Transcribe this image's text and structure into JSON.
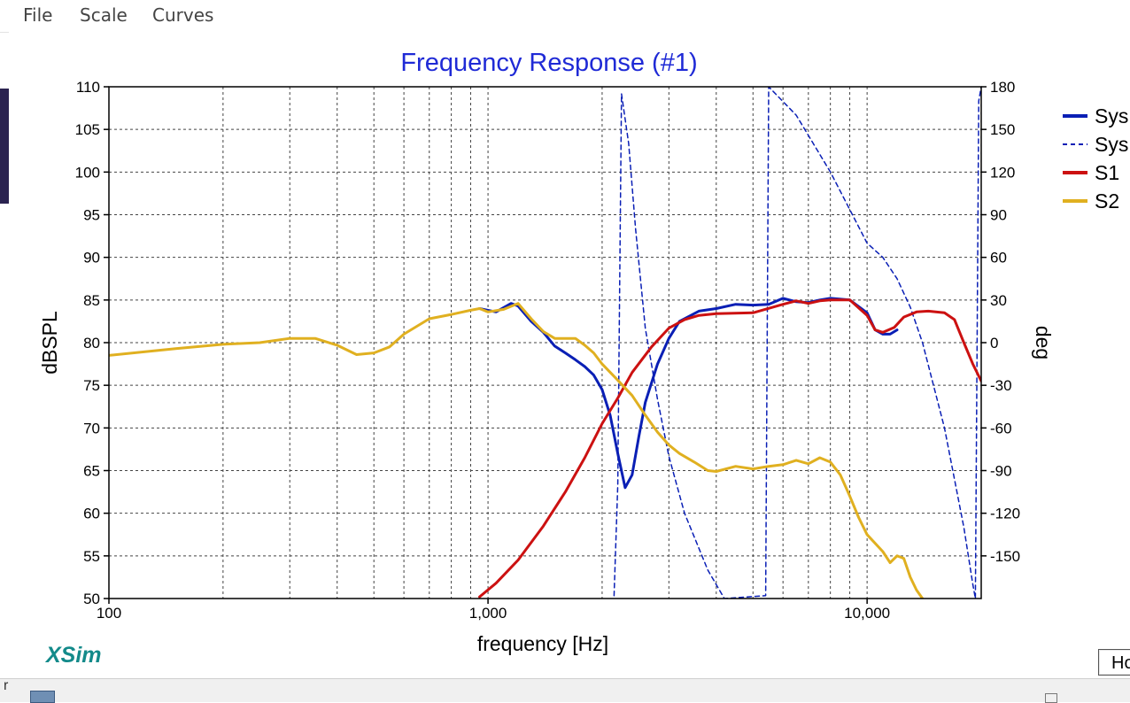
{
  "menu": {
    "file": "File",
    "scale": "Scale",
    "curves": "Curves"
  },
  "button_partial": "Ho",
  "bottom_partial": "r",
  "brand": "XSim",
  "chart_data": {
    "type": "line",
    "title": "Frequency Response (#1)",
    "xlabel": "frequency [Hz]",
    "ylabel": "dBSPL",
    "y2label": "deg",
    "xscale": "log",
    "xlim": [
      100,
      20000
    ],
    "ylim": [
      50,
      110
    ],
    "y2lim": [
      -180,
      180
    ],
    "grid": true,
    "legend_placement": "right",
    "x_tick_labels": [
      "100",
      "1,000",
      "10,000"
    ],
    "x_tick_values": [
      100,
      1000,
      10000
    ],
    "y_ticks": [
      50,
      55,
      60,
      65,
      70,
      75,
      80,
      85,
      90,
      95,
      100,
      105,
      110
    ],
    "y2_ticks": [
      -150,
      -120,
      -90,
      -60,
      -30,
      0,
      30,
      60,
      90,
      120,
      150,
      180
    ],
    "series": [
      {
        "name": "Sys",
        "axis": "left",
        "style": "solid",
        "color": "#0a1fb5",
        "width": 3,
        "points": [
          [
            950,
            84
          ],
          [
            1050,
            83.6
          ],
          [
            1150,
            84.6
          ],
          [
            1200,
            84.3
          ],
          [
            1300,
            82.5
          ],
          [
            1400,
            81.2
          ],
          [
            1500,
            79.6
          ],
          [
            1600,
            78.8
          ],
          [
            1700,
            78
          ],
          [
            1800,
            77.2
          ],
          [
            1900,
            76.2
          ],
          [
            2000,
            74.5
          ],
          [
            2100,
            71.5
          ],
          [
            2200,
            67
          ],
          [
            2300,
            63
          ],
          [
            2400,
            64.5
          ],
          [
            2500,
            69
          ],
          [
            2600,
            73
          ],
          [
            2800,
            77.5
          ],
          [
            3000,
            80.5
          ],
          [
            3200,
            82.5
          ],
          [
            3600,
            83.7
          ],
          [
            4000,
            84
          ],
          [
            4500,
            84.5
          ],
          [
            5000,
            84.4
          ],
          [
            5500,
            84.5
          ],
          [
            6000,
            85.2
          ],
          [
            6500,
            84.8
          ],
          [
            7000,
            84.7
          ],
          [
            7500,
            85
          ],
          [
            8000,
            85.2
          ],
          [
            9000,
            85
          ],
          [
            10000,
            83.5
          ],
          [
            10500,
            81.5
          ],
          [
            11000,
            81
          ],
          [
            11500,
            81
          ],
          [
            12000,
            81.5
          ]
        ]
      },
      {
        "name": "Sys",
        "axis": "right",
        "style": "dashed",
        "color": "#0a1fb5",
        "width": 1.5,
        "points": [
          [
            2150,
            -178
          ],
          [
            2200,
            -100
          ],
          [
            2250,
            175
          ],
          [
            2350,
            140
          ],
          [
            2450,
            80
          ],
          [
            2600,
            10
          ],
          [
            2800,
            -40
          ],
          [
            3000,
            -80
          ],
          [
            3300,
            -120
          ],
          [
            3800,
            -160
          ],
          [
            4200,
            -180
          ],
          [
            5400,
            -178
          ],
          [
            5500,
            180
          ],
          [
            6500,
            160
          ],
          [
            8000,
            120
          ],
          [
            10000,
            70
          ],
          [
            11000,
            60
          ],
          [
            12000,
            45
          ],
          [
            13000,
            25
          ],
          [
            14000,
            0
          ],
          [
            16000,
            -60
          ],
          [
            18000,
            -130
          ],
          [
            19000,
            -170
          ],
          [
            19300,
            -180
          ],
          [
            19700,
            170
          ],
          [
            20000,
            180
          ]
        ]
      },
      {
        "name": "S1",
        "axis": "left",
        "style": "solid",
        "color": "#cc1111",
        "width": 3,
        "points": [
          [
            950,
            50.2
          ],
          [
            1050,
            51.8
          ],
          [
            1200,
            54.5
          ],
          [
            1400,
            58.5
          ],
          [
            1600,
            62.5
          ],
          [
            1800,
            66.5
          ],
          [
            2000,
            70.5
          ],
          [
            2200,
            73.5
          ],
          [
            2400,
            76.5
          ],
          [
            2700,
            79.5
          ],
          [
            3000,
            81.7
          ],
          [
            3300,
            82.7
          ],
          [
            3600,
            83.2
          ],
          [
            4000,
            83.4
          ],
          [
            5000,
            83.5
          ],
          [
            6000,
            84.5
          ],
          [
            6500,
            84.9
          ],
          [
            7000,
            84.6
          ],
          [
            7500,
            84.9
          ],
          [
            8000,
            85
          ],
          [
            9000,
            85
          ],
          [
            10000,
            83.2
          ],
          [
            10500,
            81.5
          ],
          [
            11000,
            81.2
          ],
          [
            11800,
            81.8
          ],
          [
            12500,
            83
          ],
          [
            13500,
            83.6
          ],
          [
            14500,
            83.7
          ],
          [
            16000,
            83.5
          ],
          [
            17000,
            82.7
          ],
          [
            18000,
            80
          ],
          [
            19000,
            77.5
          ],
          [
            20000,
            75.5
          ]
        ]
      },
      {
        "name": "S2",
        "axis": "left",
        "style": "solid",
        "color": "#e0b020",
        "width": 3,
        "points": [
          [
            100,
            78.5
          ],
          [
            150,
            79.3
          ],
          [
            200,
            79.8
          ],
          [
            250,
            80
          ],
          [
            300,
            80.5
          ],
          [
            350,
            80.5
          ],
          [
            400,
            79.7
          ],
          [
            450,
            78.6
          ],
          [
            500,
            78.8
          ],
          [
            550,
            79.5
          ],
          [
            600,
            81
          ],
          [
            700,
            82.8
          ],
          [
            800,
            83.3
          ],
          [
            900,
            83.8
          ],
          [
            950,
            84
          ],
          [
            1000,
            83.6
          ],
          [
            1100,
            83.9
          ],
          [
            1200,
            84.6
          ],
          [
            1300,
            82.8
          ],
          [
            1400,
            81.3
          ],
          [
            1500,
            80.5
          ],
          [
            1700,
            80.5
          ],
          [
            1800,
            79.7
          ],
          [
            1900,
            78.8
          ],
          [
            2000,
            77.5
          ],
          [
            2200,
            75.6
          ],
          [
            2400,
            73.8
          ],
          [
            2600,
            71.5
          ],
          [
            2800,
            69.5
          ],
          [
            3000,
            68
          ],
          [
            3200,
            67
          ],
          [
            3500,
            66
          ],
          [
            3800,
            65
          ],
          [
            4000,
            64.9
          ],
          [
            4500,
            65.5
          ],
          [
            5000,
            65.2
          ],
          [
            5500,
            65.5
          ],
          [
            6000,
            65.7
          ],
          [
            6500,
            66.2
          ],
          [
            7000,
            65.8
          ],
          [
            7500,
            66.5
          ],
          [
            8000,
            66
          ],
          [
            8500,
            64.5
          ],
          [
            9000,
            62
          ],
          [
            9500,
            59.5
          ],
          [
            10000,
            57.5
          ],
          [
            11000,
            55.5
          ],
          [
            11500,
            54.2
          ],
          [
            12000,
            55
          ],
          [
            12500,
            54.7
          ],
          [
            13000,
            52.5
          ],
          [
            13500,
            51
          ],
          [
            14000,
            50
          ]
        ]
      }
    ]
  }
}
